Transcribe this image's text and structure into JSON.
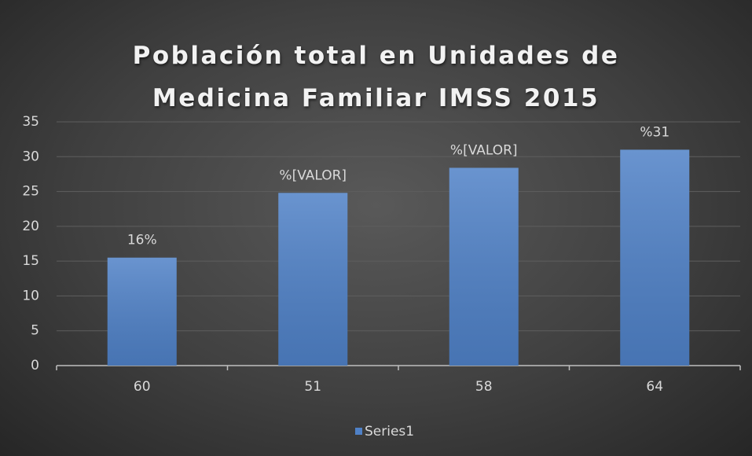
{
  "chart_data": {
    "type": "bar",
    "title": "Población total en Unidades de Medicina Familiar IMSS 2015",
    "categories": [
      "60",
      "51",
      "58",
      "64"
    ],
    "series": [
      {
        "name": "Series1",
        "color": "#4f81c7",
        "values": [
          15.5,
          24.8,
          28.4,
          31
        ],
        "value_labels": [
          "16%",
          "%[VALOR]",
          "%[VALOR]",
          "%31"
        ]
      }
    ],
    "ylim": [
      0,
      35
    ],
    "yticks": [
      0,
      5,
      10,
      15,
      20,
      25,
      30,
      35
    ],
    "grid": true,
    "legend": "bottom"
  }
}
